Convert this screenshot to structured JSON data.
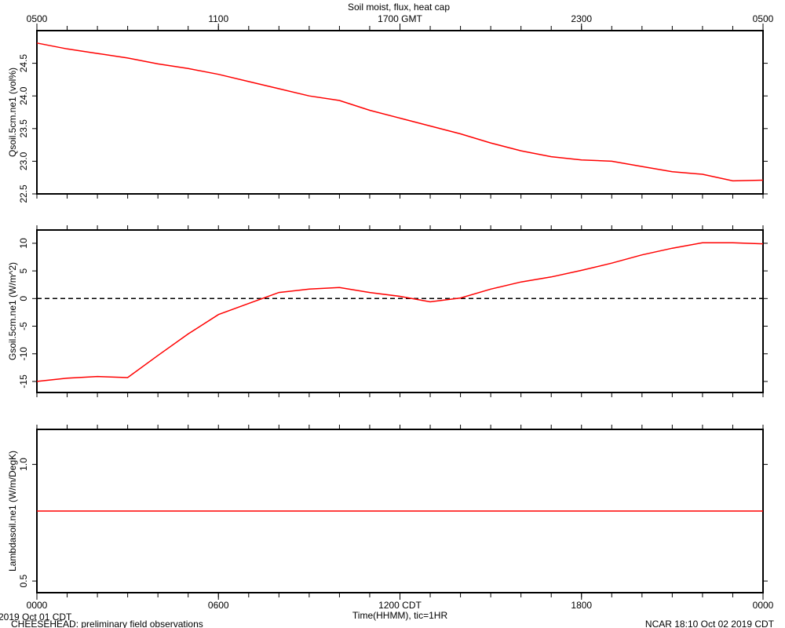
{
  "footer": {
    "date": "2019 Oct 01 CDT",
    "project": "CHEESEHEAD: preliminary field observations",
    "stamp": "NCAR 18:10 Oct 02 2019 CDT"
  },
  "chart_data": [
    {
      "type": "line",
      "title": "Soil moist, flux, heat cap",
      "ylabel": "Qsoil.5cm.ne1 (vol%)",
      "xlim": [
        0,
        24
      ],
      "top_xticks": [
        {
          "value": 0,
          "label": "0500"
        },
        {
          "value": 6,
          "label": "1100"
        },
        {
          "value": 12,
          "label": "1700 GMT"
        },
        {
          "value": 18,
          "label": "2300"
        },
        {
          "value": 24,
          "label": "0500"
        }
      ],
      "minor_xticks": [
        0,
        1,
        2,
        3,
        4,
        5,
        6,
        7,
        8,
        9,
        10,
        11,
        12,
        13,
        14,
        15,
        16,
        17,
        18,
        19,
        20,
        21,
        22,
        23,
        24
      ],
      "ylim": [
        22.5,
        25.0
      ],
      "yticks": [
        22.5,
        {
          "value": 23.0,
          "label": "23.0"
        },
        23.5,
        {
          "value": 24.0,
          "label": "24.0"
        },
        24.5
      ],
      "x": [
        0,
        1,
        2,
        3,
        4,
        5,
        6,
        7,
        8,
        9,
        10,
        11,
        12,
        13,
        14,
        15,
        16,
        17,
        18,
        19,
        20,
        21,
        22,
        23,
        24
      ],
      "series": [
        {
          "color": "#ff0000",
          "values": [
            24.81,
            24.72,
            24.65,
            24.58,
            24.49,
            24.42,
            24.33,
            24.22,
            24.11,
            24.0,
            23.93,
            23.78,
            23.66,
            23.54,
            23.42,
            23.28,
            23.16,
            23.07,
            23.02,
            23.0,
            22.92,
            22.84,
            22.8,
            22.7,
            22.71
          ]
        }
      ]
    },
    {
      "type": "line",
      "ylabel": "Gsoil.5cm.ne1 (W/m^2)",
      "xlim": [
        0,
        24
      ],
      "zero_line": true,
      "ylim": [
        -17,
        12.4
      ],
      "yticks": [
        -15,
        -10,
        -5,
        0,
        5,
        10
      ],
      "x": [
        0,
        1,
        2,
        3,
        4,
        5,
        6,
        7,
        8,
        9,
        10,
        11,
        12,
        13,
        14,
        15,
        16,
        17,
        18,
        19,
        20,
        21,
        22,
        23,
        24
      ],
      "series": [
        {
          "color": "#ff0000",
          "values": [
            -15,
            -14.4,
            -14.1,
            -14.3,
            -10.3,
            -6.4,
            -2.9,
            -0.9,
            1.1,
            1.7,
            2.0,
            1.1,
            0.4,
            -0.6,
            0.1,
            1.7,
            3.0,
            3.9,
            5.1,
            6.4,
            7.9,
            9.1,
            10.1,
            10.1,
            9.9
          ]
        }
      ]
    },
    {
      "type": "line",
      "ylabel": "Lambdasoil.ne1 (W/m/DegK)",
      "xlabel": "Time(HHMM), tic=1HR",
      "xlim": [
        0,
        24
      ],
      "xticks": [
        {
          "value": 0,
          "label": "0000"
        },
        {
          "value": 6,
          "label": "0600"
        },
        {
          "value": 12,
          "label": "1200 CDT"
        },
        {
          "value": 18,
          "label": "1800"
        },
        {
          "value": 24,
          "label": "0000"
        }
      ],
      "ylim": [
        0.45,
        1.15
      ],
      "yticks": [
        0.5,
        {
          "value": 1.0,
          "label": "1.0"
        }
      ],
      "x": [
        0,
        1,
        2,
        3,
        4,
        5,
        6,
        7,
        8,
        9,
        10,
        11,
        12,
        13,
        14,
        15,
        16,
        17,
        18,
        19,
        20,
        21,
        22,
        23,
        24
      ],
      "series": [
        {
          "color": "#ff0000",
          "values": [
            0.8,
            0.8,
            0.8,
            0.8,
            0.8,
            0.8,
            0.8,
            0.8,
            0.8,
            0.8,
            0.8,
            0.8,
            0.8,
            0.8,
            0.8,
            0.8,
            0.8,
            0.8,
            0.8,
            0.8,
            0.8,
            0.8,
            0.8,
            0.8,
            0.8
          ]
        }
      ]
    }
  ]
}
